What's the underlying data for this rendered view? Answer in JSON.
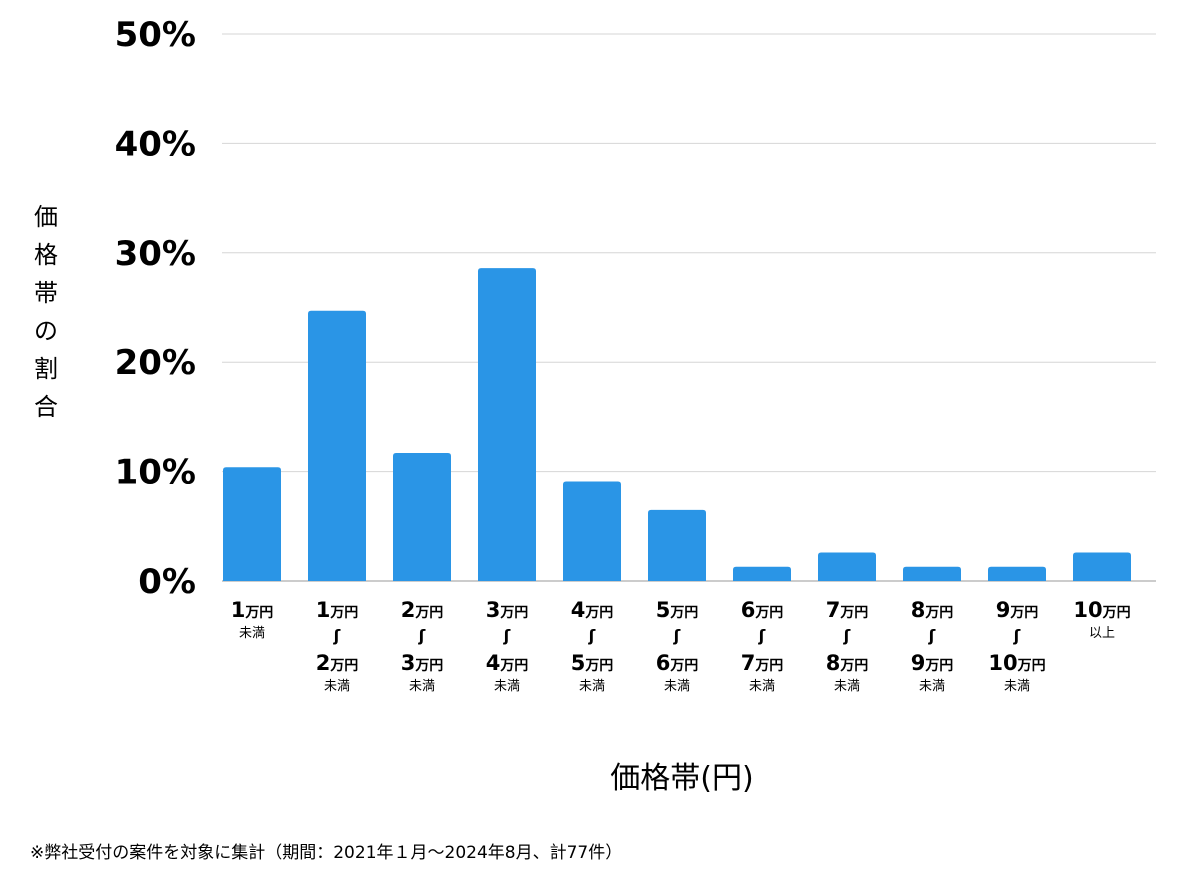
{
  "chart_data": {
    "type": "bar",
    "ylabel": "価格帯の割合",
    "xlabel": "価格帯(円)",
    "ylim": [
      0,
      50
    ],
    "yticks": [
      "0%",
      "10%",
      "20%",
      "30%",
      "40%",
      "50%"
    ],
    "grid": true,
    "bar_color": "#2a95e6",
    "categories": [
      {
        "from": "1",
        "to": "",
        "unit": "万円",
        "sub": "未満"
      },
      {
        "from": "1",
        "to": "2",
        "unit": "万円",
        "sub": "未満"
      },
      {
        "from": "2",
        "to": "3",
        "unit": "万円",
        "sub": "未満"
      },
      {
        "from": "3",
        "to": "4",
        "unit": "万円",
        "sub": "未満"
      },
      {
        "from": "4",
        "to": "5",
        "unit": "万円",
        "sub": "未満"
      },
      {
        "from": "5",
        "to": "6",
        "unit": "万円",
        "sub": "未満"
      },
      {
        "from": "6",
        "to": "7",
        "unit": "万円",
        "sub": "未満"
      },
      {
        "from": "7",
        "to": "8",
        "unit": "万円",
        "sub": "未満"
      },
      {
        "from": "8",
        "to": "9",
        "unit": "万円",
        "sub": "未満"
      },
      {
        "from": "9",
        "to": "10",
        "unit": "万円",
        "sub": "未満"
      },
      {
        "from": "10",
        "to": "",
        "unit": "万円",
        "sub": "以上"
      }
    ],
    "values": [
      10.4,
      24.7,
      11.7,
      28.6,
      9.1,
      6.5,
      1.3,
      2.6,
      1.3,
      1.3,
      2.6
    ]
  },
  "footnote": "※弊社受付の案件を対象に集計（期間：2021年１月〜2024年8月、計77件）"
}
